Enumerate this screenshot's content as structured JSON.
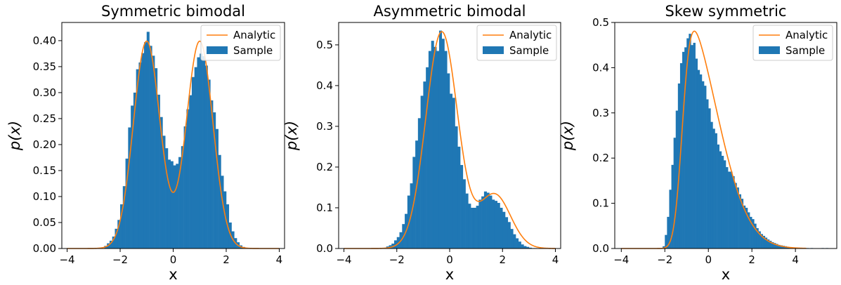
{
  "chart_data": [
    {
      "type": "histogram",
      "title": "Symmetric bimodal",
      "xlabel": "x",
      "ylabel": "p(x)",
      "xlim": [
        -4.2,
        4.2
      ],
      "ylim": [
        0,
        0.435
      ],
      "xticks": [
        -4,
        -2,
        0,
        2,
        4
      ],
      "xtick_labels": [
        "−4",
        "−2",
        "0",
        "2",
        "4"
      ],
      "yticks": [
        0,
        0.05,
        0.1,
        0.15,
        0.2,
        0.25,
        0.3,
        0.35,
        0.4
      ],
      "ytick_labels": [
        "0.00",
        "0.05",
        "0.10",
        "0.15",
        "0.20",
        "0.25",
        "0.30",
        "0.35",
        "0.40"
      ],
      "legend_position": "top-right",
      "legend": [
        "Analytic",
        "Sample"
      ],
      "series": [
        {
          "name": "Analytic",
          "kind": "line",
          "color": "#ff7f0e",
          "distribution": "gaussian-mixture",
          "components": [
            {
              "weight": 0.5,
              "mean": -1.0,
              "sd": 0.5
            },
            {
              "weight": 0.5,
              "mean": 1.0,
              "sd": 0.5
            }
          ],
          "x_range": [
            -4,
            4
          ]
        },
        {
          "name": "Sample",
          "kind": "bar",
          "color": "#1f77b4",
          "bins": [
            -2.6,
            -2.5,
            -2.4,
            -2.3,
            -2.2,
            -2.1,
            -2.0,
            -1.9,
            -1.8,
            -1.7,
            -1.6,
            -1.5,
            -1.4,
            -1.3,
            -1.2,
            -1.1,
            -1.0,
            -0.9,
            -0.8,
            -0.7,
            -0.6,
            -0.5,
            -0.4,
            -0.3,
            -0.2,
            -0.1,
            0.0,
            0.1,
            0.2,
            0.3,
            0.4,
            0.5,
            0.6,
            0.7,
            0.8,
            0.9,
            1.0,
            1.1,
            1.2,
            1.3,
            1.4,
            1.5,
            1.6,
            1.7,
            1.8,
            1.9,
            2.0,
            2.1,
            2.2,
            2.3,
            2.4,
            2.5,
            2.6,
            2.7
          ],
          "values": [
            0.005,
            0.01,
            0.015,
            0.023,
            0.038,
            0.055,
            0.085,
            0.12,
            0.173,
            0.233,
            0.275,
            0.3,
            0.345,
            0.358,
            0.376,
            0.397,
            0.417,
            0.39,
            0.371,
            0.347,
            0.296,
            0.253,
            0.217,
            0.193,
            0.171,
            0.168,
            0.16,
            0.163,
            0.176,
            0.197,
            0.235,
            0.268,
            0.295,
            0.33,
            0.349,
            0.368,
            0.375,
            0.37,
            0.352,
            0.325,
            0.285,
            0.262,
            0.23,
            0.18,
            0.14,
            0.11,
            0.085,
            0.05,
            0.033,
            0.02,
            0.012,
            0.006,
            0.003,
            0.001
          ]
        }
      ]
    },
    {
      "type": "histogram",
      "title": "Asymmetric bimodal",
      "xlabel": "x",
      "ylabel": "p(x)",
      "xlim": [
        -4.2,
        4.2
      ],
      "ylim": [
        0,
        0.555
      ],
      "xticks": [
        -4,
        -2,
        0,
        2,
        4
      ],
      "xtick_labels": [
        "−4",
        "−2",
        "0",
        "2",
        "4"
      ],
      "yticks": [
        0,
        0.1,
        0.2,
        0.3,
        0.4,
        0.5
      ],
      "ytick_labels": [
        "0.0",
        "0.1",
        "0.2",
        "0.3",
        "0.4",
        "0.5"
      ],
      "legend_position": "top-right",
      "legend": [
        "Analytic",
        "Sample"
      ],
      "series": [
        {
          "name": "Analytic",
          "kind": "line",
          "color": "#ff7f0e",
          "distribution": "gaussian-mixture",
          "components": [
            {
              "weight": 0.8,
              "mean": -0.3,
              "sd": 0.6
            },
            {
              "weight": 0.2,
              "mean": 1.7,
              "sd": 0.6
            }
          ],
          "x_range": [
            -4,
            4
          ]
        },
        {
          "name": "Sample",
          "kind": "bar",
          "color": "#1f77b4",
          "bins": [
            -2.4,
            -2.3,
            -2.2,
            -2.1,
            -2.0,
            -1.9,
            -1.8,
            -1.7,
            -1.6,
            -1.5,
            -1.4,
            -1.3,
            -1.2,
            -1.1,
            -1.0,
            -0.9,
            -0.8,
            -0.7,
            -0.6,
            -0.5,
            -0.4,
            -0.3,
            -0.2,
            -0.1,
            0.0,
            0.1,
            0.2,
            0.3,
            0.4,
            0.5,
            0.6,
            0.7,
            0.8,
            0.9,
            1.0,
            1.1,
            1.2,
            1.3,
            1.4,
            1.5,
            1.6,
            1.7,
            1.8,
            1.9,
            2.0,
            2.1,
            2.2,
            2.3,
            2.4,
            2.5,
            2.6,
            2.7,
            2.8,
            2.9,
            3.0,
            3.1,
            3.2,
            3.3,
            3.4
          ],
          "values": [
            0.005,
            0.008,
            0.012,
            0.02,
            0.028,
            0.04,
            0.06,
            0.085,
            0.13,
            0.16,
            0.225,
            0.265,
            0.32,
            0.375,
            0.41,
            0.445,
            0.485,
            0.51,
            0.495,
            0.485,
            0.535,
            0.515,
            0.485,
            0.43,
            0.38,
            0.37,
            0.3,
            0.25,
            0.205,
            0.17,
            0.135,
            0.11,
            0.1,
            0.1,
            0.105,
            0.12,
            0.128,
            0.14,
            0.137,
            0.13,
            0.12,
            0.117,
            0.112,
            0.1,
            0.09,
            0.077,
            0.065,
            0.048,
            0.035,
            0.025,
            0.017,
            0.01,
            0.006,
            0.004,
            0.002,
            0.001,
            0.001,
            0.0,
            0.001
          ]
        }
      ]
    },
    {
      "type": "histogram",
      "title": "Skew symmetric",
      "xlabel": "x",
      "ylabel": "p(x)",
      "xlim": [
        -4.3,
        5.9
      ],
      "ylim": [
        0,
        0.5
      ],
      "xticks": [
        -4,
        -2,
        0,
        2,
        4
      ],
      "xtick_labels": [
        "−4",
        "−2",
        "0",
        "2",
        "4"
      ],
      "yticks": [
        0,
        0.1,
        0.2,
        0.3,
        0.4,
        0.5
      ],
      "ytick_labels": [
        "0.0",
        "0.1",
        "0.2",
        "0.3",
        "0.4",
        "0.5"
      ],
      "legend_position": "top-right",
      "legend": [
        "Analytic",
        "Sample"
      ],
      "series": [
        {
          "name": "Analytic",
          "kind": "line",
          "color": "#ff7f0e",
          "distribution": "skew-normal",
          "location": -1.2,
          "scale": 1.5,
          "shape": 5,
          "x_range": [
            -4,
            4.5
          ]
        },
        {
          "name": "Sample",
          "kind": "bar",
          "color": "#1f77b4",
          "bins": [
            -2.1,
            -2.0,
            -1.9,
            -1.8,
            -1.7,
            -1.6,
            -1.5,
            -1.4,
            -1.3,
            -1.2,
            -1.1,
            -1.0,
            -0.9,
            -0.8,
            -0.7,
            -0.6,
            -0.5,
            -0.4,
            -0.3,
            -0.2,
            -0.1,
            0.0,
            0.1,
            0.2,
            0.3,
            0.4,
            0.5,
            0.6,
            0.7,
            0.8,
            0.9,
            1.0,
            1.1,
            1.2,
            1.3,
            1.4,
            1.5,
            1.6,
            1.7,
            1.8,
            1.9,
            2.0,
            2.1,
            2.2,
            2.3,
            2.4,
            2.5,
            2.6,
            2.7,
            2.8,
            2.9,
            3.0,
            3.1,
            3.2,
            3.3,
            3.4,
            3.5,
            3.6,
            3.7,
            3.8,
            3.9,
            4.0,
            4.1,
            4.2,
            4.3,
            4.4,
            4.5,
            4.6,
            4.7,
            4.8,
            4.9,
            5.0,
            5.1,
            5.2,
            5.3,
            5.4
          ],
          "values": [
            0.005,
            0.03,
            0.07,
            0.13,
            0.185,
            0.245,
            0.305,
            0.365,
            0.41,
            0.435,
            0.445,
            0.465,
            0.475,
            0.45,
            0.455,
            0.42,
            0.395,
            0.385,
            0.37,
            0.36,
            0.33,
            0.31,
            0.28,
            0.265,
            0.255,
            0.23,
            0.215,
            0.205,
            0.195,
            0.18,
            0.17,
            0.17,
            0.16,
            0.145,
            0.135,
            0.12,
            0.11,
            0.095,
            0.09,
            0.08,
            0.07,
            0.065,
            0.055,
            0.045,
            0.038,
            0.032,
            0.028,
            0.024,
            0.02,
            0.017,
            0.014,
            0.012,
            0.01,
            0.008,
            0.007,
            0.006,
            0.005,
            0.004,
            0.003,
            0.002,
            0.002,
            0.001,
            0.001,
            0.001,
            0.001,
            0.0,
            0.001,
            0.0,
            0.001,
            0.0,
            0.0,
            0.0,
            0.0,
            0.001,
            0.0,
            0.001
          ]
        }
      ]
    }
  ]
}
